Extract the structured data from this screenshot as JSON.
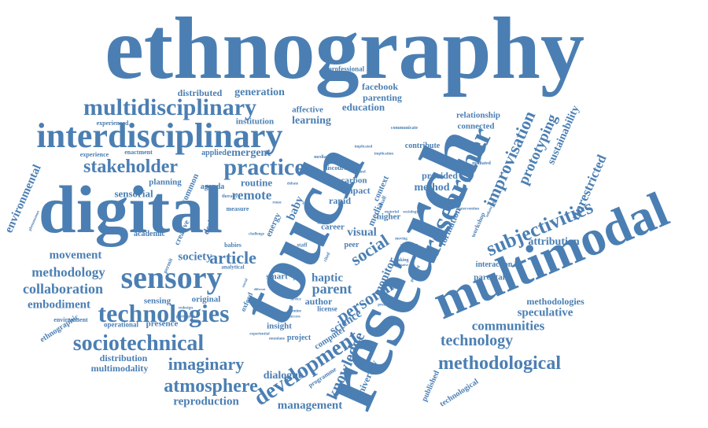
{
  "colors": {
    "background": "#ffffff",
    "word": "#4b7fb3"
  },
  "words": [
    {
      "text": "ethnography"
    },
    {
      "text": "research"
    },
    {
      "text": "touch"
    },
    {
      "text": "digital"
    },
    {
      "text": "multimodal"
    },
    {
      "text": "interdisciplinary"
    },
    {
      "text": "multidisciplinary"
    },
    {
      "text": "sensory"
    },
    {
      "text": "researcher"
    },
    {
      "text": "technologies"
    },
    {
      "text": "sociotechnical"
    },
    {
      "text": "development"
    },
    {
      "text": "practice"
    },
    {
      "text": "stakeholder"
    },
    {
      "text": "subjectivities"
    },
    {
      "text": "methodological"
    },
    {
      "text": "atmosphere"
    },
    {
      "text": "imaginary"
    },
    {
      "text": "improvisation"
    },
    {
      "text": "technology"
    },
    {
      "text": "communities"
    },
    {
      "text": "article"
    },
    {
      "text": "personal"
    },
    {
      "text": "social"
    },
    {
      "text": "knowledge"
    },
    {
      "text": "prototyping"
    },
    {
      "text": "unrestricted"
    },
    {
      "text": "sustainability"
    },
    {
      "text": "attribution"
    },
    {
      "text": "speculative"
    },
    {
      "text": "methodologies"
    },
    {
      "text": "collaboration"
    },
    {
      "text": "methodology"
    },
    {
      "text": "embodiment"
    },
    {
      "text": "movement"
    },
    {
      "text": "society"
    },
    {
      "text": "remote"
    },
    {
      "text": "routine"
    },
    {
      "text": "sensorial"
    },
    {
      "text": "environmental"
    },
    {
      "text": "reproduction"
    },
    {
      "text": "management"
    },
    {
      "text": "multimodality"
    },
    {
      "text": "distribution"
    },
    {
      "text": "dialogue"
    },
    {
      "text": "university"
    },
    {
      "text": "visual"
    },
    {
      "text": "haptic"
    },
    {
      "text": "parent"
    },
    {
      "text": "author"
    },
    {
      "text": "science"
    },
    {
      "text": "monitor"
    },
    {
      "text": "method"
    },
    {
      "text": "provided"
    },
    {
      "text": "formation"
    },
    {
      "text": "baby"
    },
    {
      "text": "emergent"
    },
    {
      "text": "generation"
    },
    {
      "text": "distributed"
    },
    {
      "text": "learning"
    },
    {
      "text": "education"
    },
    {
      "text": "parenting"
    },
    {
      "text": "facebook"
    },
    {
      "text": "professional"
    },
    {
      "text": "affective"
    },
    {
      "text": "institution"
    },
    {
      "text": "relationship"
    },
    {
      "text": "connected"
    },
    {
      "text": "contribute"
    },
    {
      "text": "applied"
    },
    {
      "text": "planning"
    },
    {
      "text": "agenda"
    },
    {
      "text": "common"
    },
    {
      "text": "design"
    },
    {
      "text": "creative"
    },
    {
      "text": "academic"
    },
    {
      "text": "impact"
    },
    {
      "text": "rapid"
    },
    {
      "text": "carbon"
    },
    {
      "text": "media"
    },
    {
      "text": "context"
    },
    {
      "text": "higher"
    },
    {
      "text": "career"
    },
    {
      "text": "peer"
    },
    {
      "text": "energy"
    },
    {
      "text": "smart"
    },
    {
      "text": "insight"
    },
    {
      "text": "project"
    },
    {
      "text": "computer"
    },
    {
      "text": "original"
    },
    {
      "text": "sensing"
    },
    {
      "text": "presence"
    },
    {
      "text": "operational"
    },
    {
      "text": "ethnographic"
    },
    {
      "text": "oxford"
    },
    {
      "text": "programme"
    },
    {
      "text": "published"
    },
    {
      "text": "technological"
    },
    {
      "text": "parental"
    },
    {
      "text": "interaction"
    },
    {
      "text": "workshop"
    },
    {
      "text": "experienced"
    },
    {
      "text": "experience"
    },
    {
      "text": "enactment"
    },
    {
      "text": "environment"
    },
    {
      "text": "measure"
    },
    {
      "text": "babies"
    },
    {
      "text": "analytical"
    },
    {
      "text": "permit"
    },
    {
      "text": "license"
    },
    {
      "text": "discourse"
    },
    {
      "text": "mediating"
    },
    {
      "text": "communicate"
    },
    {
      "text": "implicated"
    },
    {
      "text": "implication"
    },
    {
      "text": "behalf"
    },
    {
      "text": "staff"
    },
    {
      "text": "light"
    },
    {
      "text": "term"
    },
    {
      "text": "data"
    },
    {
      "text": "open"
    },
    {
      "text": "cited"
    },
    {
      "text": "device"
    },
    {
      "text": "examine"
    },
    {
      "text": "success"
    },
    {
      "text": "mundane"
    },
    {
      "text": "experiential"
    },
    {
      "text": "redesign"
    },
    {
      "text": "participant"
    },
    {
      "text": "demand"
    },
    {
      "text": "phenomenon"
    },
    {
      "text": "therapy"
    },
    {
      "text": "reuse"
    },
    {
      "text": "debate"
    },
    {
      "text": "mediated"
    },
    {
      "text": "situating"
    },
    {
      "text": "moving"
    },
    {
      "text": "making"
    },
    {
      "text": "generating"
    },
    {
      "text": "enhancing"
    },
    {
      "text": "intervention"
    },
    {
      "text": "material"
    },
    {
      "text": "sociology"
    },
    {
      "text": "challenge"
    },
    {
      "text": "person"
    },
    {
      "text": "future"
    },
    {
      "text": "production"
    },
    {
      "text": "qualitative"
    },
    {
      "text": "different"
    },
    {
      "text": "social"
    }
  ]
}
